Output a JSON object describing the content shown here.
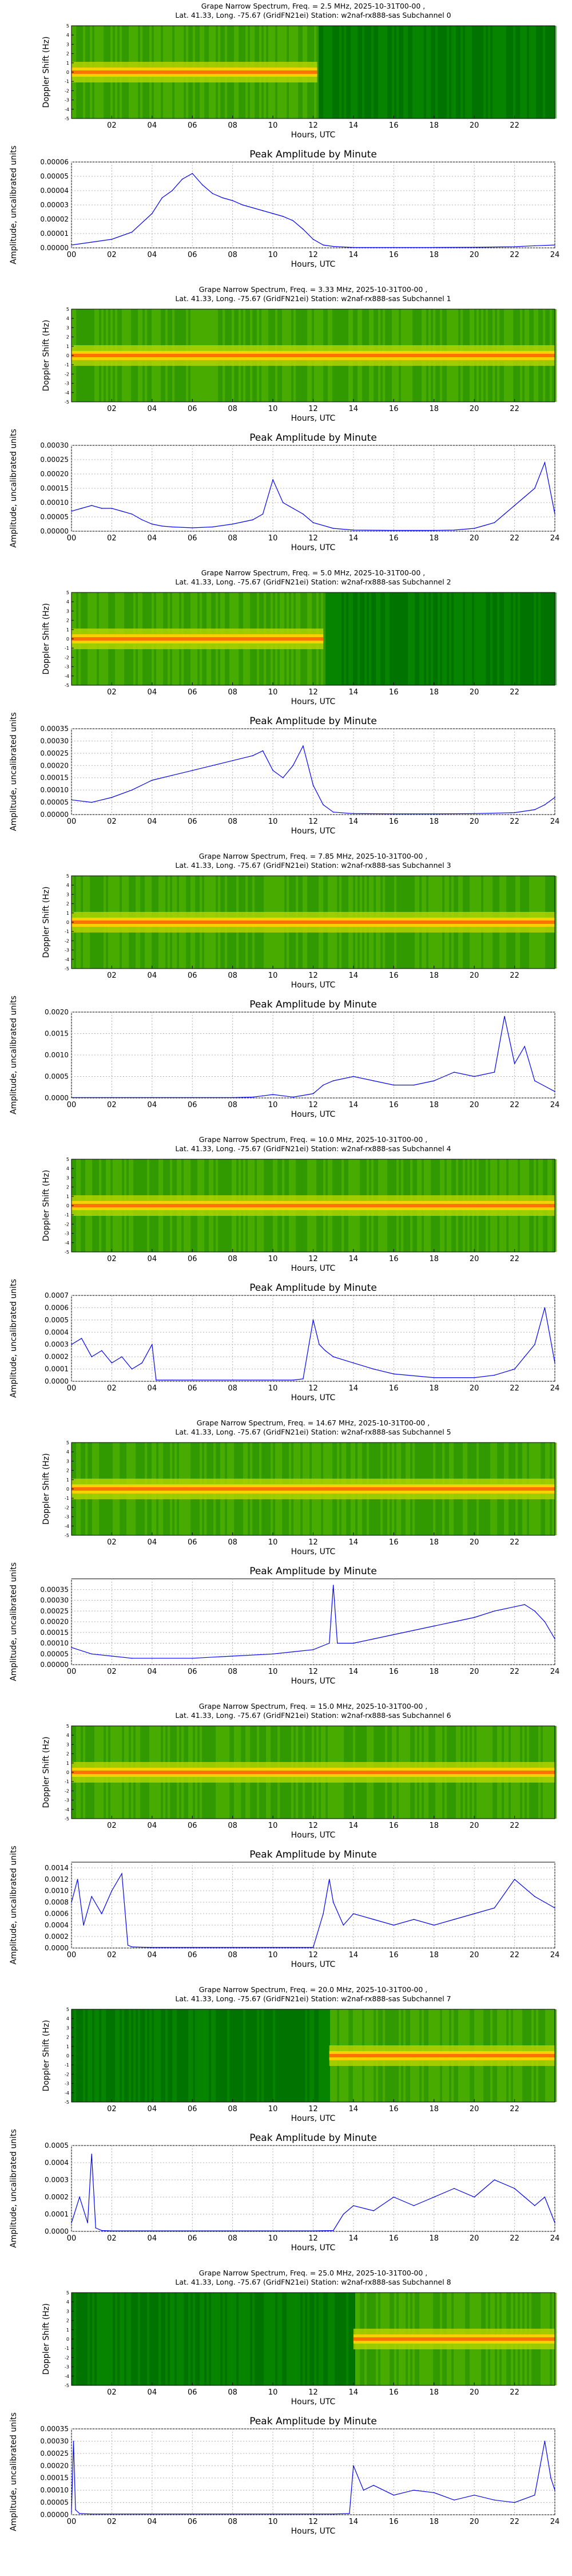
{
  "spectrum_common": {
    "xlabel": "Hours, UTC",
    "ylabel": "Doppler Shift (Hz)",
    "xticks": [
      "02",
      "04",
      "06",
      "08",
      "10",
      "12",
      "14",
      "16",
      "18",
      "20",
      "22"
    ],
    "yticks": [
      "-5",
      "-4",
      "-3",
      "-2",
      "-1",
      "0",
      "1",
      "2",
      "3",
      "4",
      "5"
    ]
  },
  "amplitude_common": {
    "title": "Peak Amplitude by Minute",
    "xlabel": "Hours, UTC",
    "ylabel": "Amplitude, uncalibrated units",
    "xticks": [
      "00",
      "02",
      "04",
      "06",
      "08",
      "10",
      "12",
      "14",
      "16",
      "18",
      "20",
      "22",
      "24"
    ]
  },
  "chart_data": [
    {
      "type": "heatmap",
      "title_line1": "Grape Narrow Spectrum, Freq. = 2.5 MHz, 2025-10-31T00-00 ,",
      "title_line2": "Lat.  41.33, Long. -75.67 (GridFN21ei) Station: w2naf-rx888-sas Subchannel 0",
      "x_range_hours": [
        0,
        24
      ],
      "y_range_hz": [
        -5,
        5
      ],
      "active_hours": [
        0,
        12.2
      ],
      "colormap": "green-yellow-red"
    },
    {
      "type": "line",
      "x_range": [
        0,
        24
      ],
      "ylim": [
        0,
        6e-05
      ],
      "yticks": [
        "0.00000",
        "0.00001",
        "0.00002",
        "0.00003",
        "0.00004",
        "0.00005",
        "0.00006"
      ],
      "series": [
        {
          "color": "#0000ff",
          "x": [
            0,
            1,
            2,
            3,
            4,
            4.5,
            5,
            5.5,
            6,
            6.5,
            7,
            7.5,
            8,
            8.5,
            9,
            9.5,
            10,
            10.5,
            11,
            11.5,
            12,
            12.5,
            13,
            14,
            16,
            18,
            20,
            22,
            23,
            24
          ],
          "y": [
            2e-06,
            4e-06,
            6e-06,
            1.1e-05,
            2.4e-05,
            3.5e-05,
            4e-05,
            4.8e-05,
            5.2e-05,
            4.4e-05,
            3.8e-05,
            3.5e-05,
            3.3e-05,
            3e-05,
            2.8e-05,
            2.6e-05,
            2.4e-05,
            2.2e-05,
            1.9e-05,
            1.3e-05,
            6e-06,
            2e-06,
            1e-06,
            3e-07,
            3e-07,
            3e-07,
            4e-07,
            8e-07,
            1.5e-06,
            2e-06
          ]
        }
      ]
    },
    {
      "type": "heatmap",
      "title_line1": "Grape Narrow Spectrum, Freq. = 3.33 MHz, 2025-10-31T00-00 ,",
      "title_line2": "Lat.  41.33, Long. -75.67 (GridFN21ei) Station: w2naf-rx888-sas Subchannel 1",
      "x_range_hours": [
        0,
        24
      ],
      "y_range_hz": [
        -5,
        5
      ],
      "active_hours": [
        0,
        24
      ],
      "colormap": "green-yellow-red"
    },
    {
      "type": "line",
      "x_range": [
        0,
        24
      ],
      "ylim": [
        0,
        0.0003
      ],
      "yticks": [
        "0.00000",
        "0.00005",
        "0.00010",
        "0.00015",
        "0.00020",
        "0.00025",
        "0.00030"
      ],
      "series": [
        {
          "color": "#0000ff",
          "x": [
            0,
            0.5,
            1,
            1.5,
            2,
            2.5,
            3,
            3.5,
            4,
            4.5,
            5,
            6,
            7,
            8,
            9,
            9.5,
            10,
            10.5,
            11,
            11.5,
            12,
            13,
            14,
            16,
            18,
            19,
            20,
            20.5,
            21,
            21.5,
            22,
            22.5,
            23,
            23.5,
            24
          ],
          "y": [
            7e-05,
            8e-05,
            9e-05,
            8e-05,
            8e-05,
            7e-05,
            6e-05,
            4e-05,
            2.5e-05,
            1.8e-05,
            1.5e-05,
            1.2e-05,
            1.5e-05,
            2.5e-05,
            4e-05,
            6e-05,
            0.00018,
            0.0001,
            8e-05,
            6e-05,
            3e-05,
            1e-05,
            4e-06,
            3e-06,
            3e-06,
            4e-06,
            1e-05,
            2e-05,
            3e-05,
            6e-05,
            9e-05,
            0.00012,
            0.00015,
            0.00024,
            6e-05
          ]
        }
      ]
    },
    {
      "type": "heatmap",
      "title_line1": "Grape Narrow Spectrum, Freq. = 5.0 MHz, 2025-10-31T00-00 ,",
      "title_line2": "Lat.  41.33, Long. -75.67 (GridFN21ei) Station: w2naf-rx888-sas Subchannel 2",
      "x_range_hours": [
        0,
        24
      ],
      "y_range_hz": [
        -5,
        5
      ],
      "active_hours": [
        0,
        12.5
      ],
      "colormap": "green-yellow-red"
    },
    {
      "type": "line",
      "x_range": [
        0,
        24
      ],
      "ylim": [
        0,
        0.00035
      ],
      "yticks": [
        "0.00000",
        "0.00005",
        "0.00010",
        "0.00015",
        "0.00020",
        "0.00025",
        "0.00030",
        "0.00035"
      ],
      "series": [
        {
          "color": "#0000ff",
          "x": [
            0,
            1,
            2,
            3,
            4,
            5,
            6,
            7,
            8,
            9,
            9.5,
            10,
            10.5,
            11,
            11.5,
            12,
            12.5,
            13,
            14,
            16,
            18,
            20,
            22,
            23,
            23.5,
            24
          ],
          "y": [
            6e-05,
            5e-05,
            7e-05,
            0.0001,
            0.00014,
            0.00016,
            0.00018,
            0.0002,
            0.00022,
            0.00024,
            0.00026,
            0.00018,
            0.00015,
            0.0002,
            0.00028,
            0.00012,
            4e-05,
            1e-05,
            4e-06,
            3e-06,
            3e-06,
            4e-06,
            8e-06,
            2e-05,
            4e-05,
            7e-05
          ]
        }
      ]
    },
    {
      "type": "heatmap",
      "title_line1": "Grape Narrow Spectrum, Freq. = 7.85 MHz, 2025-10-31T00-00 ,",
      "title_line2": "Lat.  41.33, Long. -75.67 (GridFN21ei) Station: w2naf-rx888-sas Subchannel 3",
      "x_range_hours": [
        0,
        24
      ],
      "y_range_hz": [
        -5,
        5
      ],
      "active_hours": [
        0,
        24
      ],
      "colormap": "green-yellow-red"
    },
    {
      "type": "line",
      "x_range": [
        0,
        24
      ],
      "ylim": [
        0,
        0.002
      ],
      "yticks": [
        "0.0000",
        "0.0005",
        "0.0010",
        "0.0015",
        "0.0020"
      ],
      "series": [
        {
          "color": "#0000ff",
          "x": [
            0,
            2,
            4,
            6,
            8,
            9,
            9.5,
            10,
            11,
            12,
            12.5,
            13,
            14,
            15,
            16,
            17,
            18,
            19,
            20,
            21,
            21.5,
            22,
            22.5,
            23,
            24
          ],
          "y": [
            1e-05,
            1e-05,
            1e-05,
            1e-05,
            1e-05,
            2e-05,
            5e-05,
            8e-05,
            2e-05,
            0.0001,
            0.0003,
            0.0004,
            0.0005,
            0.0004,
            0.0003,
            0.0003,
            0.0004,
            0.0006,
            0.0005,
            0.0006,
            0.0019,
            0.0008,
            0.0012,
            0.0004,
            0.00015
          ]
        }
      ]
    },
    {
      "type": "heatmap",
      "title_line1": "Grape Narrow Spectrum, Freq. = 10.0 MHz, 2025-10-31T00-00 ,",
      "title_line2": "Lat.  41.33, Long. -75.67 (GridFN21ei) Station: w2naf-rx888-sas Subchannel 4",
      "x_range_hours": [
        0,
        24
      ],
      "y_range_hz": [
        -5,
        5
      ],
      "active_hours": [
        0,
        24
      ],
      "colormap": "green-yellow-red"
    },
    {
      "type": "line",
      "x_range": [
        0,
        24
      ],
      "ylim": [
        0,
        0.0007
      ],
      "yticks": [
        "0.0000",
        "0.0001",
        "0.0002",
        "0.0003",
        "0.0004",
        "0.0005",
        "0.0006",
        "0.0007"
      ],
      "series": [
        {
          "color": "#0000ff",
          "x": [
            0,
            0.5,
            1,
            1.5,
            2,
            2.5,
            3,
            3.5,
            4,
            4.2,
            5,
            6,
            8,
            10,
            11,
            11.5,
            12,
            12.3,
            12.6,
            13,
            14,
            15,
            16,
            18,
            20,
            21,
            22,
            22.5,
            23,
            23.5,
            24
          ],
          "y": [
            0.0003,
            0.00035,
            0.0002,
            0.00025,
            0.00015,
            0.0002,
            0.0001,
            0.00015,
            0.0003,
            1e-05,
            1e-05,
            1e-05,
            1e-05,
            1e-05,
            1e-05,
            2e-05,
            0.0005,
            0.0003,
            0.00025,
            0.0002,
            0.00015,
            0.0001,
            6e-05,
            3e-05,
            3e-05,
            5e-05,
            0.0001,
            0.0002,
            0.0003,
            0.0006,
            0.00015
          ]
        }
      ]
    },
    {
      "type": "heatmap",
      "title_line1": "Grape Narrow Spectrum, Freq. = 14.67 MHz, 2025-10-31T00-00 ,",
      "title_line2": "Lat.  41.33, Long. -75.67 (GridFN21ei) Station: w2naf-rx888-sas Subchannel 5",
      "x_range_hours": [
        0,
        24
      ],
      "y_range_hz": [
        -5,
        5
      ],
      "active_hours": [
        0,
        24
      ],
      "colormap": "green-yellow-red"
    },
    {
      "type": "line",
      "x_range": [
        0,
        24
      ],
      "ylim": [
        0,
        0.0004
      ],
      "yticks": [
        "0.00000",
        "0.00005",
        "0.00010",
        "0.00015",
        "0.00020",
        "0.00025",
        "0.00030",
        "0.00035"
      ],
      "series": [
        {
          "color": "#0000ff",
          "x": [
            0,
            1,
            2,
            3,
            4,
            6,
            8,
            10,
            11,
            12,
            12.8,
            13,
            13.2,
            14,
            15,
            16,
            17,
            18,
            19,
            20,
            21,
            22,
            22.5,
            23,
            23.5,
            24
          ],
          "y": [
            8e-05,
            5e-05,
            4e-05,
            3e-05,
            3e-05,
            3e-05,
            4e-05,
            5e-05,
            6e-05,
            7e-05,
            0.0001,
            0.00037,
            0.0001,
            0.0001,
            0.00012,
            0.00014,
            0.00016,
            0.00018,
            0.0002,
            0.00022,
            0.00025,
            0.00027,
            0.00028,
            0.00025,
            0.0002,
            0.00012
          ]
        }
      ]
    },
    {
      "type": "heatmap",
      "title_line1": "Grape Narrow Spectrum, Freq. = 15.0 MHz, 2025-10-31T00-00 ,",
      "title_line2": "Lat.  41.33, Long. -75.67 (GridFN21ei) Station: w2naf-rx888-sas Subchannel 6",
      "x_range_hours": [
        0,
        24
      ],
      "y_range_hz": [
        -5,
        5
      ],
      "active_hours": [
        0,
        24
      ],
      "colormap": "green-yellow-red"
    },
    {
      "type": "line",
      "x_range": [
        0,
        24
      ],
      "ylim": [
        0,
        0.0015
      ],
      "yticks": [
        "0.0000",
        "0.0002",
        "0.0004",
        "0.0006",
        "0.0008",
        "0.0010",
        "0.0012",
        "0.0014"
      ],
      "series": [
        {
          "color": "#0000ff",
          "x": [
            0,
            0.3,
            0.6,
            1,
            1.5,
            2,
            2.5,
            2.8,
            3,
            4,
            6,
            8,
            10,
            11,
            12,
            12.5,
            12.8,
            13,
            13.5,
            14,
            15,
            16,
            17,
            18,
            19,
            20,
            21,
            22,
            23,
            24
          ],
          "y": [
            0.0008,
            0.0012,
            0.0004,
            0.0009,
            0.0006,
            0.001,
            0.0013,
            5e-05,
            2e-05,
            1e-05,
            1e-05,
            1e-05,
            1e-05,
            1e-05,
            1e-05,
            0.0006,
            0.0012,
            0.0008,
            0.0004,
            0.0006,
            0.0005,
            0.0004,
            0.0005,
            0.0004,
            0.0005,
            0.0006,
            0.0007,
            0.0012,
            0.0009,
            0.0007
          ]
        }
      ]
    },
    {
      "type": "heatmap",
      "title_line1": "Grape Narrow Spectrum, Freq. = 20.0 MHz, 2025-10-31T00-00 ,",
      "title_line2": "Lat.  41.33, Long. -75.67 (GridFN21ei) Station: w2naf-rx888-sas Subchannel 7",
      "x_range_hours": [
        0,
        24
      ],
      "y_range_hz": [
        -5,
        5
      ],
      "active_hours": [
        12.8,
        24
      ],
      "colormap": "green-yellow-red"
    },
    {
      "type": "line",
      "x_range": [
        0,
        24
      ],
      "ylim": [
        0,
        0.0005
      ],
      "yticks": [
        "0.0000",
        "0.0001",
        "0.0002",
        "0.0003",
        "0.0004",
        "0.0005"
      ],
      "series": [
        {
          "color": "#0000ff",
          "x": [
            0,
            0.4,
            0.8,
            1,
            1.2,
            1.5,
            2,
            4,
            6,
            8,
            10,
            12,
            13,
            13.5,
            14,
            15,
            16,
            17,
            18,
            19,
            20,
            21,
            22,
            22.5,
            23,
            23.5,
            24
          ],
          "y": [
            5e-05,
            0.0002,
            5e-05,
            0.00045,
            2e-05,
            5e-06,
            3e-06,
            3e-06,
            3e-06,
            3e-06,
            3e-06,
            3e-06,
            5e-06,
            0.0001,
            0.00015,
            0.00012,
            0.0002,
            0.00015,
            0.0002,
            0.00025,
            0.0002,
            0.0003,
            0.00025,
            0.0002,
            0.00015,
            0.0002,
            5e-05
          ]
        }
      ]
    },
    {
      "type": "heatmap",
      "title_line1": "Grape Narrow Spectrum, Freq. = 25.0 MHz, 2025-10-31T00-00 ,",
      "title_line2": "Lat.  41.33, Long. -75.67 (GridFN21ei) Station: w2naf-rx888-sas Subchannel 8",
      "x_range_hours": [
        0,
        24
      ],
      "y_range_hz": [
        -5,
        5
      ],
      "active_hours": [
        14,
        24
      ],
      "colormap": "green-yellow-red"
    },
    {
      "type": "line",
      "x_range": [
        0,
        24
      ],
      "ylim": [
        0,
        0.00035
      ],
      "yticks": [
        "0.00000",
        "0.00005",
        "0.00010",
        "0.00015",
        "0.00020",
        "0.00025",
        "0.00030",
        "0.00035"
      ],
      "series": [
        {
          "color": "#0000ff",
          "x": [
            0,
            0.1,
            0.2,
            0.4,
            1,
            2,
            4,
            6,
            8,
            10,
            12,
            13,
            13.8,
            14,
            14.5,
            15,
            16,
            17,
            18,
            19,
            20,
            21,
            22,
            23,
            23.5,
            23.8,
            24
          ],
          "y": [
            1e-05,
            0.0003,
            2e-05,
            5e-06,
            3e-06,
            3e-06,
            3e-06,
            3e-06,
            3e-06,
            3e-06,
            3e-06,
            3e-06,
            5e-06,
            0.0002,
            0.0001,
            0.00012,
            8e-05,
            0.0001,
            9e-05,
            6e-05,
            8e-05,
            6e-05,
            5e-05,
            8e-05,
            0.0003,
            0.00015,
            0.0001
          ]
        }
      ]
    }
  ]
}
